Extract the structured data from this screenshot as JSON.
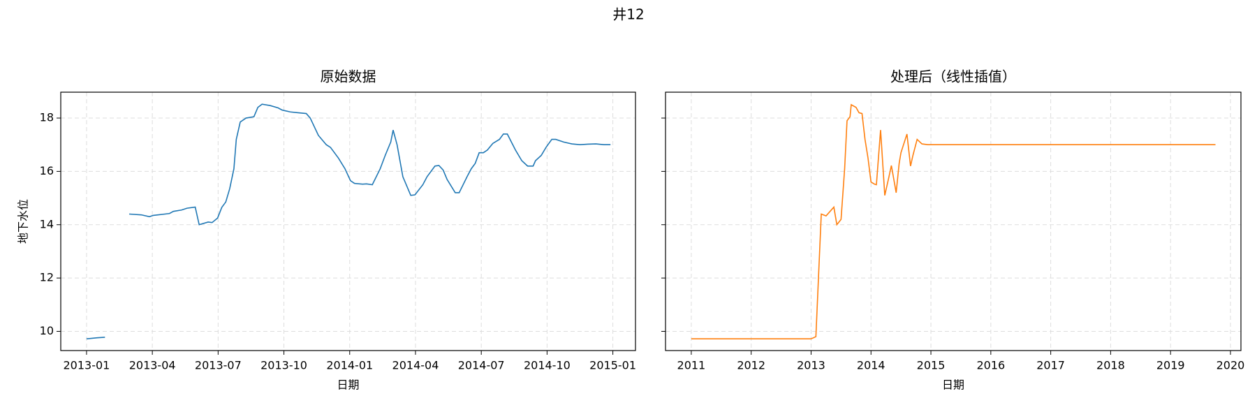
{
  "title": "井12",
  "chart_data": [
    {
      "type": "line",
      "title": "原始数据",
      "xlabel": "日期",
      "ylabel": "地下水位",
      "color": "#1f77b4",
      "grid": true,
      "xlim": [
        2012.902,
        2015.086
      ],
      "ylim": [
        9.28,
        18.97
      ],
      "xticks": [
        {
          "value": 2013.0,
          "label": "2013-01"
        },
        {
          "value": 2013.25,
          "label": "2013-04"
        },
        {
          "value": 2013.5,
          "label": "2013-07"
        },
        {
          "value": 2013.75,
          "label": "2013-10"
        },
        {
          "value": 2014.0,
          "label": "2014-01"
        },
        {
          "value": 2014.25,
          "label": "2014-04"
        },
        {
          "value": 2014.5,
          "label": "2014-07"
        },
        {
          "value": 2014.75,
          "label": "2014-10"
        },
        {
          "value": 2015.0,
          "label": "2015-01"
        }
      ],
      "yticks": [
        10,
        12,
        14,
        16,
        18
      ],
      "x": [
        2013.0,
        2013.04,
        2013.07,
        2013.12,
        2013.162,
        2013.208,
        2013.239,
        2013.254,
        2013.315,
        2013.33,
        2013.361,
        2013.382,
        2013.413,
        2013.428,
        2013.462,
        2013.477,
        2013.498,
        2013.514,
        2013.529,
        2013.544,
        2013.56,
        2013.569,
        2013.584,
        2013.606,
        2013.636,
        2013.651,
        2013.667,
        2013.697,
        2013.728,
        2013.743,
        2013.774,
        2013.804,
        2013.835,
        2013.85,
        2013.881,
        2013.911,
        2013.927,
        2013.957,
        2013.982,
        2014.003,
        2014.018,
        2014.049,
        2014.064,
        2014.086,
        2014.116,
        2014.135,
        2014.156,
        2014.165,
        2014.18,
        2014.202,
        2014.232,
        2014.248,
        2014.278,
        2014.294,
        2014.324,
        2014.339,
        2014.355,
        2014.37,
        2014.401,
        2014.416,
        2014.446,
        2014.462,
        2014.477,
        2014.492,
        2014.508,
        2014.523,
        2014.544,
        2014.569,
        2014.584,
        2014.599,
        2014.63,
        2014.654,
        2014.676,
        2014.697,
        2014.706,
        2014.728,
        2014.746,
        2014.768,
        2014.783,
        2014.813,
        2014.844,
        2014.875,
        2014.905,
        2014.936,
        2014.966,
        2014.991
      ],
      "values": [
        9.72,
        9.76,
        9.78,
        null,
        14.4,
        14.37,
        14.3,
        14.35,
        14.42,
        14.5,
        14.55,
        14.62,
        14.66,
        14.0,
        14.1,
        14.08,
        14.25,
        14.65,
        14.85,
        15.35,
        16.1,
        17.2,
        17.85,
        18.0,
        18.05,
        18.4,
        18.52,
        18.47,
        18.38,
        18.3,
        18.23,
        18.2,
        18.17,
        18.0,
        17.35,
        17.0,
        16.9,
        16.5,
        16.1,
        15.65,
        15.55,
        15.52,
        15.53,
        15.5,
        16.1,
        16.6,
        17.1,
        17.55,
        17.0,
        15.8,
        15.1,
        15.12,
        15.5,
        15.8,
        16.2,
        16.22,
        16.05,
        15.7,
        15.2,
        15.2,
        15.8,
        16.1,
        16.3,
        16.7,
        16.7,
        16.8,
        17.05,
        17.2,
        17.4,
        17.4,
        16.8,
        16.4,
        16.2,
        16.2,
        16.4,
        16.6,
        16.9,
        17.2,
        17.2,
        17.1,
        17.03,
        17.0,
        17.02,
        17.03,
        17.0,
        17.0
      ]
    },
    {
      "type": "line",
      "title": "处理后（线性插值）",
      "xlabel": "日期",
      "color": "#ff7f0e",
      "grid": true,
      "xlim": [
        2010.57,
        2020.175
      ],
      "ylim": [
        9.28,
        18.97
      ],
      "xticks": [
        2011,
        2012,
        2013,
        2014,
        2015,
        2016,
        2017,
        2018,
        2019,
        2020
      ],
      "x": [
        2011.0,
        2013.0,
        2013.08,
        2013.17,
        2013.25,
        2013.38,
        2013.43,
        2013.5,
        2013.56,
        2013.6,
        2013.65,
        2013.67,
        2013.75,
        2013.8,
        2013.85,
        2013.9,
        2013.95,
        2014.0,
        2014.06,
        2014.09,
        2014.16,
        2014.23,
        2014.3,
        2014.34,
        2014.42,
        2014.47,
        2014.5,
        2014.6,
        2014.66,
        2014.7,
        2014.77,
        2014.85,
        2014.95,
        2019.75
      ],
      "values": [
        9.72,
        9.72,
        9.8,
        14.4,
        14.33,
        14.66,
        14.0,
        14.2,
        16.1,
        17.9,
        18.05,
        18.5,
        18.4,
        18.2,
        18.17,
        17.2,
        16.5,
        15.6,
        15.52,
        15.5,
        17.55,
        15.1,
        15.8,
        16.22,
        15.2,
        16.3,
        16.7,
        17.4,
        16.2,
        16.6,
        17.2,
        17.03,
        17.0,
        17.0
      ]
    }
  ]
}
